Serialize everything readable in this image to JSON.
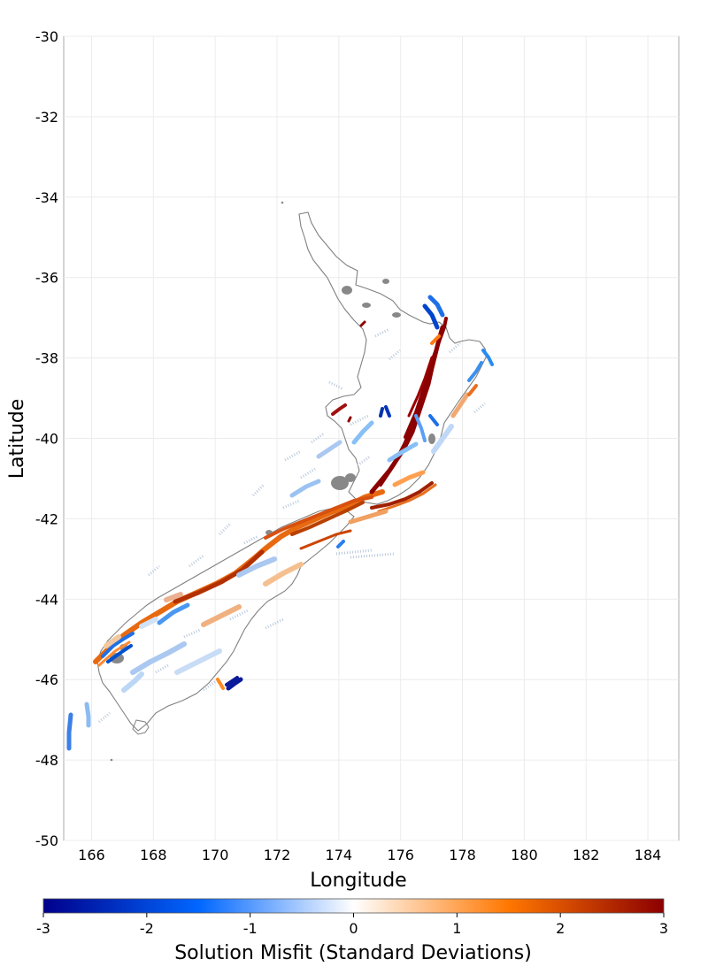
{
  "map": {
    "xlabel": "Longitude",
    "ylabel": "Latitude",
    "x_ticks": [
      "166",
      "168",
      "170",
      "172",
      "174",
      "176",
      "178",
      "180",
      "182",
      "184"
    ],
    "y_ticks": [
      "-30",
      "-32",
      "-34",
      "-36",
      "-38",
      "-40",
      "-42",
      "-44",
      "-46",
      "-48",
      "-50"
    ],
    "x_range": [
      165.1,
      185.0
    ],
    "y_range": [
      -50,
      -30
    ],
    "grid": true,
    "background_color": "#ffffff",
    "coastline_color": "#808080"
  },
  "colorbar": {
    "label": "Solution Misfit (Standard Deviations)",
    "ticks": [
      "-3",
      "-2",
      "-1",
      "0",
      "1",
      "2",
      "3"
    ],
    "range": [
      -3,
      3
    ],
    "colors": [
      "#00008b",
      "#0066ff",
      "#ffffff",
      "#ff7700",
      "#8b0000"
    ]
  }
}
